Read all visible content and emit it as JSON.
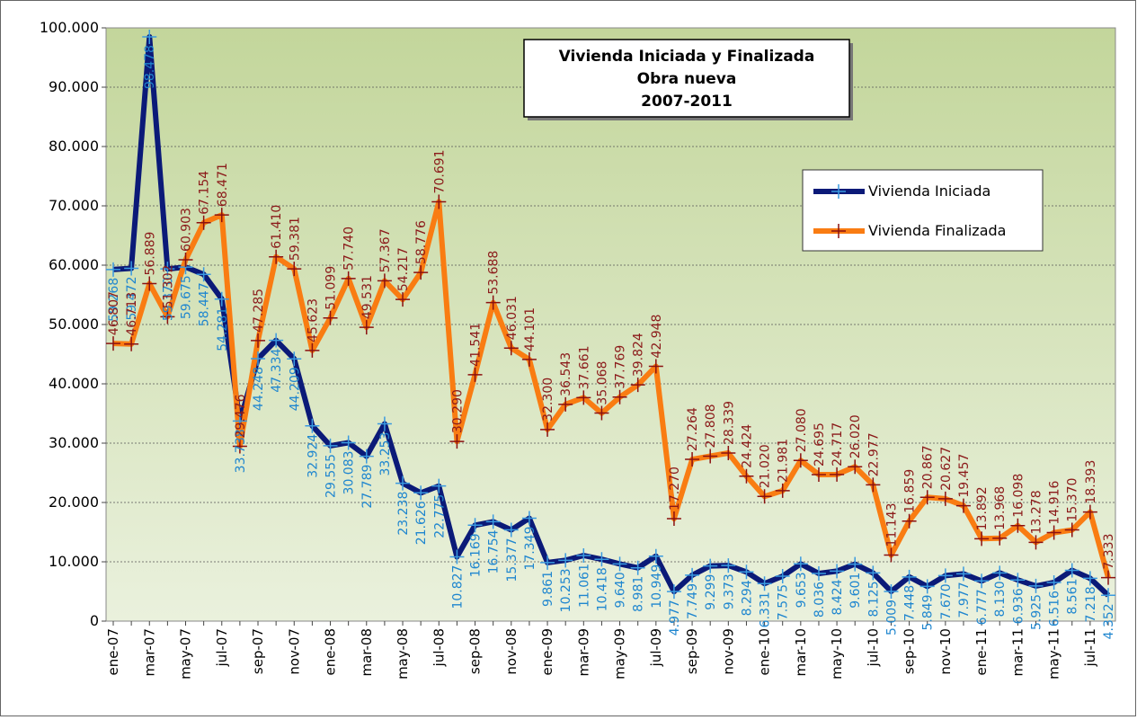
{
  "chart_data": {
    "type": "line",
    "title_lines": [
      "Vivienda Iniciada y Finalizada",
      "Obra nueva",
      "2007-2011"
    ],
    "categories": [
      "ene-07",
      null,
      "mar-07",
      null,
      "may-07",
      null,
      "jul-07",
      null,
      "sep-07",
      null,
      "nov-07",
      null,
      "ene-08",
      null,
      "mar-08",
      null,
      "may-08",
      null,
      "jul-08",
      null,
      "sep-08",
      null,
      "nov-08",
      null,
      "ene-09",
      null,
      "mar-09",
      null,
      "may-09",
      null,
      "jul-09",
      null,
      "sep-09",
      null,
      "nov-09",
      null,
      "ene-10",
      null,
      "mar-10",
      null,
      "may-10",
      null,
      "jul-10",
      null,
      "sep-10",
      null,
      "nov-10",
      null,
      "ene-11",
      null,
      "mar-11",
      null,
      "may-11",
      null,
      "jul-11",
      null
    ],
    "series": [
      {
        "name": "Vivienda Iniciada",
        "color": "#0b1a78",
        "marker_color": "#3a9ae0",
        "label_color": "#1f86cf",
        "values": [
          59268,
          59472,
          98478,
          59370,
          59675,
          58447,
          54281,
          33738,
          44248,
          47334,
          44209,
          32924,
          29555,
          30083,
          27789,
          33253,
          23238,
          21626,
          22775,
          10827,
          16169,
          16754,
          15377,
          17349,
          9861,
          10253,
          11061,
          10418,
          9640,
          8981,
          10949,
          4977,
          7749,
          9299,
          9373,
          8294,
          6331,
          7575,
          9653,
          8036,
          8424,
          9601,
          8125,
          5009,
          7448,
          5849,
          7670,
          7977,
          6777,
          8130,
          6936,
          5925,
          6516,
          8561,
          7218,
          4352
        ],
        "value_labels": [
          "59.268",
          "59.472",
          "98.478",
          "59.370",
          "59.675",
          "58.447",
          "54.281",
          "33.738",
          "44.248",
          "47.334",
          "44.209",
          "32.924",
          "29.555",
          "30.083",
          "27.789",
          "33.253",
          "23.238",
          "21.626",
          "22.775",
          "10.827",
          "16.169",
          "16.754",
          "15.377",
          "17.349",
          "9.861",
          "10.253",
          "11.061",
          "10.418",
          "9.640",
          "8.981",
          "10.949",
          "4.977",
          "7.749",
          "9.299",
          "9.373",
          "8.294",
          "6.331",
          "7.575",
          "9.653",
          "8.036",
          "8.424",
          "9.601",
          "8.125",
          "5.009",
          "7.448",
          "5.849",
          "7.670",
          "7.977",
          "6.777",
          "8.130",
          "6.936",
          "5.925",
          "6.516",
          "8.561",
          "7.218",
          "4.352"
        ]
      },
      {
        "name": "Vivienda Finalizada",
        "color": "#f97c12",
        "marker_color": "#8b1010",
        "label_color": "#8b1a1a",
        "values": [
          46807,
          46713,
          56889,
          51302,
          60903,
          67154,
          68471,
          29476,
          47285,
          61410,
          59381,
          45623,
          51099,
          57740,
          49531,
          57367,
          54217,
          58776,
          70691,
          30290,
          41541,
          53688,
          46031,
          44101,
          32300,
          36543,
          37661,
          35068,
          37769,
          39824,
          42948,
          17270,
          27264,
          27808,
          28339,
          24424,
          21020,
          21981,
          27080,
          24695,
          24717,
          26020,
          22977,
          11143,
          16859,
          20867,
          20627,
          19457,
          13892,
          13968,
          16098,
          13278,
          14916,
          15370,
          18393,
          7333
        ],
        "value_labels": [
          "46.807",
          "46.713",
          "56.889",
          "51.302",
          "60.903",
          "67.154",
          "68.471",
          "29.476",
          "47.285",
          "61.410",
          "59.381",
          "45.623",
          "51.099",
          "57.740",
          "49.531",
          "57.367",
          "54.217",
          "58.776",
          "70.691",
          "30.290",
          "41.541",
          "53.688",
          "46.031",
          "44.101",
          "32.300",
          "36.543",
          "37.661",
          "35.068",
          "37.769",
          "39.824",
          "42.948",
          "17.270",
          "27.264",
          "27.808",
          "28.339",
          "24.424",
          "21.020",
          "21.981",
          "27.080",
          "24.695",
          "24.717",
          "26.020",
          "22.977",
          "11.143",
          "16.859",
          "20.867",
          "20.627",
          "19.457",
          "13.892",
          "13.968",
          "16.098",
          "13.278",
          "14.916",
          "15.370",
          "18.393",
          "7.333"
        ]
      }
    ],
    "ylim": [
      0,
      100000
    ],
    "yticks": [
      0,
      {
        "value": 10000,
        "label": "10.000"
      },
      {
        "value": 20000,
        "label": "20.000"
      },
      {
        "value": 30000,
        "label": "30.000"
      },
      {
        "value": 40000,
        "label": "40.000"
      },
      {
        "value": 50000,
        "label": "50.000"
      },
      {
        "value": 60000,
        "label": "60.000"
      },
      {
        "value": 70000,
        "label": "70.000"
      },
      {
        "value": 80000,
        "label": "80.000"
      },
      {
        "value": 90000,
        "label": "90.000"
      },
      {
        "value": 100000,
        "label": "100.000"
      }
    ],
    "grid": true,
    "legend": "upper right"
  }
}
